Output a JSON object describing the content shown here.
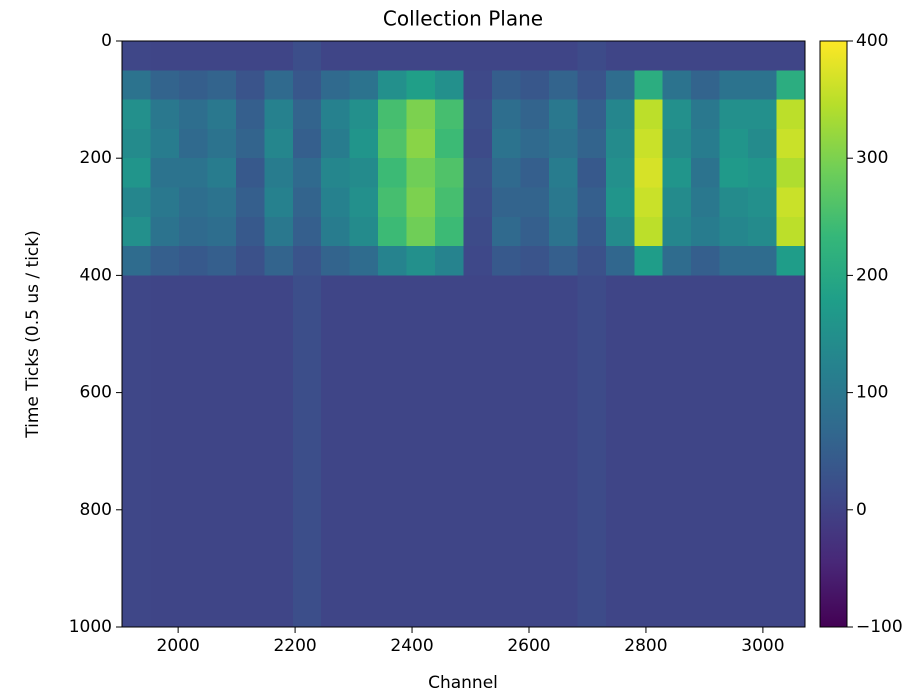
{
  "chart_data": {
    "type": "heatmap",
    "title": "Collection Plane",
    "x_label": "Channel",
    "y_label": "Time Ticks (0.5 us / tick)",
    "xlim": [
      1904,
      3072
    ],
    "ylim": [
      1000,
      0
    ],
    "xticks": [
      2000,
      2200,
      2400,
      2600,
      2800,
      3000
    ],
    "yticks": [
      0,
      200,
      400,
      600,
      800,
      1000
    ],
    "colormap": "viridis",
    "clim": [
      -100,
      400
    ],
    "cticks": [
      {
        "value": -100,
        "label": "−100"
      },
      0,
      100,
      200,
      300,
      400
    ],
    "z": [
      [
        8,
        5,
        5,
        5,
        5,
        5,
        20,
        5,
        5,
        5,
        5,
        5,
        5,
        5,
        5,
        5,
        15,
        5,
        5,
        5,
        5,
        5,
        5,
        5
      ],
      [
        90,
        60,
        48,
        60,
        30,
        72,
        36,
        72,
        90,
        150,
        180,
        150,
        12,
        48,
        36,
        60,
        30,
        78,
        210,
        90,
        60,
        90,
        90,
        210
      ],
      [
        150,
        100,
        80,
        100,
        50,
        120,
        60,
        120,
        150,
        250,
        300,
        250,
        20,
        80,
        60,
        100,
        50,
        130,
        350,
        150,
        100,
        150,
        150,
        350
      ],
      [
        140,
        110,
        70,
        90,
        60,
        130,
        50,
        110,
        160,
        260,
        310,
        240,
        15,
        90,
        70,
        90,
        60,
        140,
        360,
        140,
        110,
        160,
        140,
        360
      ],
      [
        160,
        90,
        90,
        110,
        40,
        110,
        70,
        130,
        140,
        240,
        290,
        260,
        25,
        70,
        50,
        110,
        40,
        150,
        370,
        160,
        90,
        170,
        160,
        340
      ],
      [
        130,
        100,
        80,
        90,
        50,
        120,
        60,
        120,
        150,
        250,
        300,
        250,
        20,
        60,
        60,
        100,
        50,
        160,
        360,
        140,
        100,
        140,
        150,
        360
      ],
      [
        150,
        90,
        70,
        80,
        40,
        100,
        50,
        110,
        140,
        240,
        290,
        240,
        15,
        70,
        50,
        90,
        40,
        140,
        350,
        130,
        110,
        130,
        140,
        350
      ],
      [
        75,
        50,
        40,
        50,
        25,
        60,
        30,
        60,
        75,
        125,
        150,
        125,
        10,
        40,
        30,
        50,
        25,
        65,
        175,
        75,
        50,
        75,
        75,
        175
      ],
      [
        8,
        5,
        5,
        5,
        5,
        5,
        20,
        5,
        5,
        5,
        5,
        5,
        5,
        5,
        5,
        5,
        15,
        5,
        5,
        5,
        5,
        5,
        5,
        5
      ],
      [
        8,
        5,
        5,
        5,
        5,
        5,
        20,
        5,
        5,
        5,
        5,
        5,
        5,
        5,
        5,
        5,
        15,
        5,
        5,
        5,
        5,
        5,
        5,
        5
      ],
      [
        8,
        5,
        5,
        5,
        5,
        5,
        20,
        5,
        5,
        5,
        5,
        5,
        5,
        5,
        5,
        5,
        15,
        5,
        5,
        5,
        5,
        5,
        5,
        5
      ],
      [
        8,
        5,
        5,
        5,
        5,
        5,
        20,
        5,
        5,
        5,
        5,
        5,
        5,
        5,
        5,
        5,
        15,
        5,
        5,
        5,
        5,
        5,
        5,
        5
      ],
      [
        8,
        5,
        5,
        5,
        5,
        5,
        20,
        5,
        5,
        5,
        5,
        5,
        5,
        5,
        5,
        5,
        15,
        5,
        5,
        5,
        5,
        5,
        5,
        5
      ],
      [
        8,
        5,
        5,
        5,
        5,
        5,
        20,
        5,
        5,
        5,
        5,
        5,
        5,
        5,
        5,
        5,
        15,
        5,
        5,
        5,
        5,
        5,
        5,
        5
      ],
      [
        8,
        5,
        5,
        5,
        5,
        5,
        20,
        5,
        5,
        5,
        5,
        5,
        5,
        5,
        5,
        5,
        15,
        5,
        5,
        5,
        5,
        5,
        5,
        5
      ],
      [
        8,
        5,
        5,
        5,
        5,
        5,
        20,
        5,
        5,
        5,
        5,
        5,
        5,
        5,
        5,
        5,
        15,
        5,
        5,
        5,
        5,
        5,
        5,
        5
      ],
      [
        8,
        5,
        5,
        5,
        5,
        5,
        20,
        5,
        5,
        5,
        5,
        5,
        5,
        5,
        5,
        5,
        15,
        5,
        5,
        5,
        5,
        5,
        5,
        5
      ],
      [
        8,
        5,
        5,
        5,
        5,
        5,
        20,
        5,
        5,
        5,
        5,
        5,
        5,
        5,
        5,
        5,
        15,
        5,
        5,
        5,
        5,
        5,
        5,
        5
      ],
      [
        8,
        5,
        5,
        5,
        5,
        5,
        20,
        5,
        5,
        5,
        5,
        5,
        5,
        5,
        5,
        5,
        15,
        5,
        5,
        5,
        5,
        5,
        5,
        5
      ],
      [
        8,
        5,
        5,
        5,
        5,
        5,
        20,
        5,
        5,
        5,
        5,
        5,
        5,
        5,
        5,
        5,
        15,
        5,
        5,
        5,
        5,
        5,
        5,
        5
      ]
    ]
  }
}
